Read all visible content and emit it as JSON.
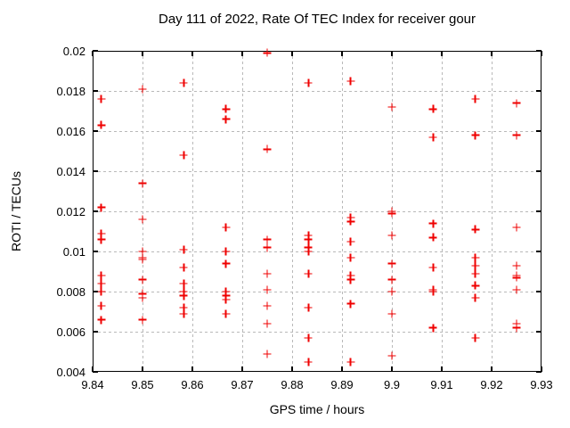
{
  "chart_data": {
    "type": "scatter",
    "title": "Day 111 of 2022, Rate Of TEC Index for receiver gour",
    "xlabel": "GPS time / hours",
    "ylabel": "ROTI / TECUs",
    "xlim": [
      9.84,
      9.93
    ],
    "ylim": [
      0.004,
      0.02
    ],
    "xtick_values": [
      9.84,
      9.85,
      9.86,
      9.87,
      9.88,
      9.89,
      9.9,
      9.91,
      9.92,
      9.93
    ],
    "xtick_labels": [
      "9.84",
      "9.85",
      "9.86",
      "9.87",
      "9.88",
      "9.89",
      "9.9",
      "9.91",
      "9.92",
      "9.93"
    ],
    "ytick_values": [
      0.004,
      0.006,
      0.008,
      0.01,
      0.012,
      0.014,
      0.016,
      0.018,
      0.02
    ],
    "ytick_labels": [
      "0.004",
      "0.006",
      "0.008",
      "0.01",
      "0.012",
      "0.014",
      "0.016",
      "0.018",
      "0.02"
    ],
    "grid": true,
    "legend": "none",
    "marker": {
      "shape": "plus",
      "color": "#ef0000",
      "size": 9
    },
    "series": [
      {
        "name": "ROTI",
        "points": [
          [
            9.8417,
            0.0176
          ],
          [
            9.8417,
            0.0163
          ],
          [
            9.8417,
            0.0122
          ],
          [
            9.8417,
            0.0109
          ],
          [
            9.8417,
            0.0106
          ],
          [
            9.8417,
            0.0088
          ],
          [
            9.8417,
            0.0084
          ],
          [
            9.8417,
            0.008
          ],
          [
            9.8417,
            0.0073
          ],
          [
            9.8417,
            0.0066
          ],
          [
            9.85,
            0.0181
          ],
          [
            9.85,
            0.0134
          ],
          [
            9.85,
            0.0116
          ],
          [
            9.85,
            0.01
          ],
          [
            9.85,
            0.0097
          ],
          [
            9.85,
            0.0096
          ],
          [
            9.85,
            0.0086
          ],
          [
            9.85,
            0.0079
          ],
          [
            9.85,
            0.0077
          ],
          [
            9.85,
            0.0066
          ],
          [
            9.8583,
            0.0184
          ],
          [
            9.8583,
            0.0148
          ],
          [
            9.8583,
            0.0101
          ],
          [
            9.8583,
            0.0092
          ],
          [
            9.8583,
            0.0084
          ],
          [
            9.8583,
            0.008
          ],
          [
            9.8583,
            0.0078
          ],
          [
            9.8583,
            0.0072
          ],
          [
            9.8583,
            0.0069
          ],
          [
            9.8667,
            0.0171
          ],
          [
            9.8667,
            0.0166
          ],
          [
            9.8667,
            0.0112
          ],
          [
            9.8667,
            0.01
          ],
          [
            9.8667,
            0.0094
          ],
          [
            9.8667,
            0.008
          ],
          [
            9.8667,
            0.0078
          ],
          [
            9.8667,
            0.0076
          ],
          [
            9.8667,
            0.0069
          ],
          [
            9.875,
            0.0199
          ],
          [
            9.875,
            0.0151
          ],
          [
            9.875,
            0.0106
          ],
          [
            9.875,
            0.0102
          ],
          [
            9.875,
            0.0089
          ],
          [
            9.875,
            0.0081
          ],
          [
            9.875,
            0.0073
          ],
          [
            9.875,
            0.0064
          ],
          [
            9.875,
            0.0049
          ],
          [
            9.8833,
            0.0184
          ],
          [
            9.8833,
            0.0108
          ],
          [
            9.8833,
            0.0106
          ],
          [
            9.8833,
            0.0102
          ],
          [
            9.8833,
            0.01
          ],
          [
            9.8833,
            0.0089
          ],
          [
            9.8833,
            0.0072
          ],
          [
            9.8833,
            0.0057
          ],
          [
            9.8833,
            0.0045
          ],
          [
            9.8917,
            0.0185
          ],
          [
            9.8917,
            0.0117
          ],
          [
            9.8917,
            0.0115
          ],
          [
            9.8917,
            0.0105
          ],
          [
            9.8917,
            0.0097
          ],
          [
            9.8917,
            0.0088
          ],
          [
            9.8917,
            0.0086
          ],
          [
            9.8917,
            0.0074
          ],
          [
            9.8917,
            0.0045
          ],
          [
            9.9,
            0.0172
          ],
          [
            9.9,
            0.012
          ],
          [
            9.9,
            0.0119
          ],
          [
            9.9,
            0.0108
          ],
          [
            9.9,
            0.0094
          ],
          [
            9.9,
            0.0086
          ],
          [
            9.9,
            0.008
          ],
          [
            9.9,
            0.0069
          ],
          [
            9.9,
            0.0048
          ],
          [
            9.9083,
            0.0171
          ],
          [
            9.9083,
            0.0157
          ],
          [
            9.9083,
            0.0114
          ],
          [
            9.9083,
            0.0107
          ],
          [
            9.9083,
            0.0092
          ],
          [
            9.9083,
            0.0081
          ],
          [
            9.9083,
            0.008
          ],
          [
            9.9083,
            0.0062
          ],
          [
            9.9167,
            0.0176
          ],
          [
            9.9167,
            0.0158
          ],
          [
            9.9167,
            0.0111
          ],
          [
            9.9167,
            0.0097
          ],
          [
            9.9167,
            0.0093
          ],
          [
            9.9167,
            0.0089
          ],
          [
            9.9167,
            0.0083
          ],
          [
            9.9167,
            0.0077
          ],
          [
            9.9167,
            0.0057
          ],
          [
            9.925,
            0.0174
          ],
          [
            9.925,
            0.0158
          ],
          [
            9.925,
            0.0112
          ],
          [
            9.925,
            0.0093
          ],
          [
            9.925,
            0.0088
          ],
          [
            9.925,
            0.0087
          ],
          [
            9.925,
            0.0081
          ],
          [
            9.925,
            0.0064
          ],
          [
            9.925,
            0.0062
          ]
        ]
      }
    ]
  },
  "colors": {
    "background": "#ffffff",
    "plot_border": "#000000",
    "grid": "#b9b9b9",
    "marker": "#ef0000",
    "text": "#000000"
  }
}
